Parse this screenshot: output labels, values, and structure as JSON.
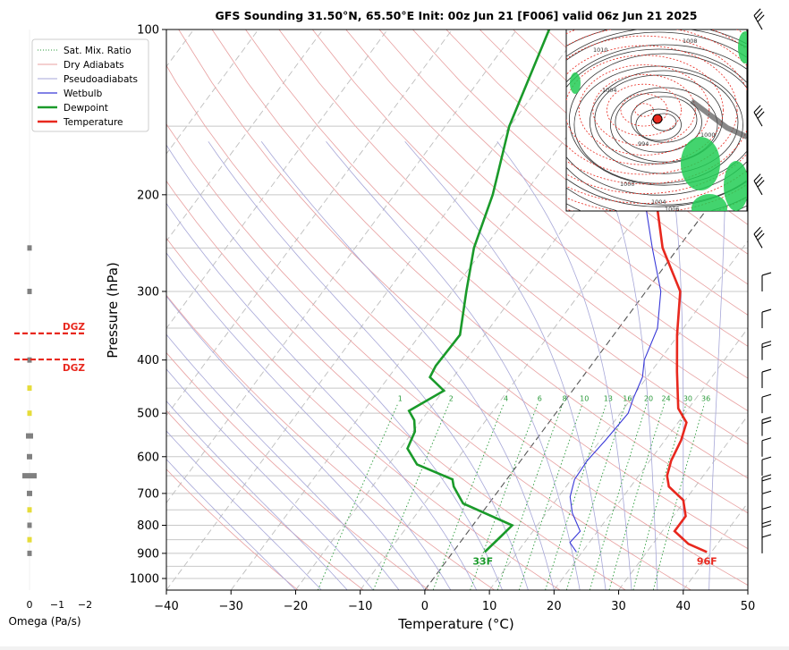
{
  "chart_data": {
    "type": "line",
    "title": "GFS Sounding 31.50°N, 65.50°E Init: 00z Jun 21 [F006] valid 06z Jun 21 2025",
    "xlabel": "Temperature (°C)",
    "ylabel": "Pressure (hPa)",
    "xlim": [
      -40,
      50
    ],
    "ylim": [
      1050,
      100
    ],
    "y_scale": "log",
    "grid": true,
    "x_ticks": [
      "−40",
      "−30",
      "−20",
      "−10",
      "0",
      "10",
      "20",
      "30",
      "40",
      "50"
    ],
    "y_ticks": [
      "100",
      "200",
      "300",
      "400",
      "500",
      "600",
      "700",
      "800",
      "900",
      "1000"
    ],
    "legend": {
      "position": "top-left",
      "entries": [
        "Sat. Mix. Ratio",
        "Dry Adiabats",
        "Pseudoadiabats",
        "Wetbulb",
        "Dewpoint",
        "Temperature"
      ]
    },
    "mixing_ratio_labels": [
      "1",
      "2",
      "4",
      "6",
      "8",
      "10",
      "13",
      "16",
      "20",
      "24",
      "30",
      "36"
    ],
    "series": [
      {
        "name": "Temperature",
        "color": "#e8281e",
        "points": [
          [
            39.3,
            895
          ],
          [
            35.5,
            865
          ],
          [
            31.9,
            820
          ],
          [
            31.9,
            770
          ],
          [
            29.7,
            720
          ],
          [
            25.9,
            680
          ],
          [
            24.4,
            650
          ],
          [
            23.3,
            610
          ],
          [
            22.5,
            560
          ],
          [
            21.3,
            520
          ],
          [
            18.4,
            490
          ],
          [
            14.0,
            420
          ],
          [
            9.8,
            360
          ],
          [
            5.3,
            300
          ],
          [
            -2.4,
            250
          ],
          [
            -9.6,
            200
          ],
          [
            -19.9,
            150
          ],
          [
            -35.1,
            100
          ]
        ]
      },
      {
        "name": "Dewpoint",
        "color": "#1a9a2a",
        "points": [
          [
            4.9,
            895
          ],
          [
            5.6,
            840
          ],
          [
            6.1,
            800
          ],
          [
            -4.0,
            730
          ],
          [
            -7.4,
            680
          ],
          [
            -8.4,
            660
          ],
          [
            -15.6,
            620
          ],
          [
            -18.9,
            580
          ],
          [
            -19.7,
            540
          ],
          [
            -21.1,
            515
          ],
          [
            -23.0,
            495
          ],
          [
            -19.9,
            455
          ],
          [
            -23.6,
            430
          ],
          [
            -24.0,
            410
          ],
          [
            -23.8,
            360
          ],
          [
            -27.8,
            300
          ],
          [
            -31.6,
            250
          ],
          [
            -34.8,
            200
          ],
          [
            -40.1,
            150
          ],
          [
            -45.0,
            100
          ]
        ]
      },
      {
        "name": "Wetbulb",
        "color": "#3838d8",
        "points": [
          [
            19.1,
            895
          ],
          [
            17.0,
            860
          ],
          [
            17.3,
            820
          ],
          [
            14.0,
            760
          ],
          [
            11.8,
            710
          ],
          [
            10.5,
            660
          ],
          [
            10.3,
            610
          ],
          [
            10.8,
            560
          ],
          [
            11.2,
            500
          ],
          [
            10.3,
            470
          ],
          [
            9.3,
            430
          ],
          [
            7.6,
            400
          ],
          [
            6.0,
            350
          ],
          [
            2.3,
            300
          ],
          [
            -4.0,
            250
          ],
          [
            -11.4,
            200
          ],
          [
            -20.3,
            150
          ],
          [
            -35.1,
            100
          ]
        ]
      }
    ],
    "surface_labels": {
      "dewpoint": "33F",
      "temperature": "96F"
    },
    "omega_axis": {
      "label": "Omega (Pa/s)",
      "ticks": [
        "0",
        "−1",
        "−2"
      ]
    },
    "omega_values": [
      {
        "p": 250,
        "omega": 0.1
      },
      {
        "p": 300,
        "omega": 0.15
      },
      {
        "p": 400,
        "omega": 0.05
      },
      {
        "p": 450,
        "omega": 0.05
      },
      {
        "p": 500,
        "omega": 0.1
      },
      {
        "p": 550,
        "omega": 0.3
      },
      {
        "p": 600,
        "omega": 0.2
      },
      {
        "p": 650,
        "omega": 0.7
      },
      {
        "p": 700,
        "omega": 0.2
      },
      {
        "p": 750,
        "omega": 0.1
      },
      {
        "p": 800,
        "omega": 0.15
      },
      {
        "p": 850,
        "omega": 0.1
      },
      {
        "p": 900,
        "omega": 0.05
      }
    ],
    "dgz": {
      "label": "DGZ",
      "top": 390,
      "bottom": 450
    }
  },
  "inset_map": {
    "point_color": "#e8281e",
    "labels": [
      "1010",
      "1004",
      "1000",
      "994",
      "1008",
      "1000",
      "1004",
      "1006"
    ]
  }
}
